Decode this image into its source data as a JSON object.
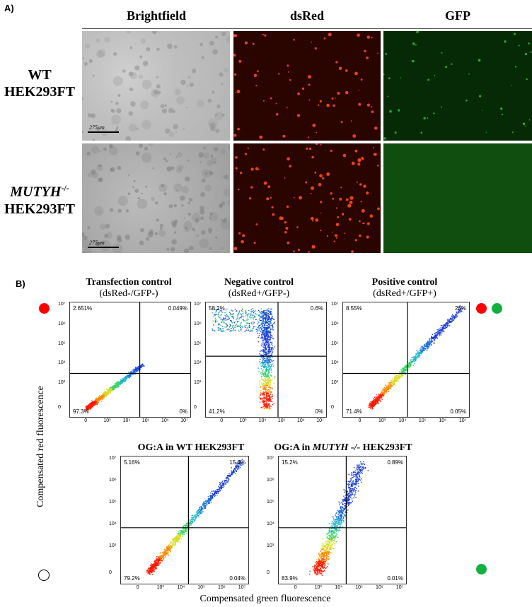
{
  "panel_a": {
    "label": "A)",
    "columns": [
      "Brightfield",
      "dsRed",
      "GFP"
    ],
    "rows": [
      {
        "line1": "WT",
        "line2": "HEK293FT"
      },
      {
        "line1": "MUTYH",
        "sup": "-/-",
        "line2": "HEK293FT"
      }
    ],
    "scale_bar": "275μm"
  },
  "panel_b": {
    "label": "B)",
    "plots": [
      {
        "title": "Transfection control",
        "subtitle": "(dsRed-/GFP-)",
        "q_ul": "2.651%",
        "q_ur": "0.049%",
        "q_ll": "97.3%",
        "q_lr": "0%"
      },
      {
        "title": "Negative control",
        "subtitle": "(dsRed+/GFP-)",
        "q_ul": "58.2%",
        "q_ur": "0.6%",
        "q_ll": "41.2%",
        "q_lr": "0%"
      },
      {
        "title": "Positive control",
        "subtitle": "(dsRed+/GFP+)",
        "q_ul": "8.55%",
        "q_ur": "20%",
        "q_ll": "71.4%",
        "q_lr": "0.05%"
      },
      {
        "title": "OG:A in WT HEK293FT",
        "subtitle": "",
        "q_ul": "5.16%",
        "q_ur": "15.6%",
        "q_ll": "79.2%",
        "q_lr": "0.04%"
      },
      {
        "title_prefix": "OG:A in ",
        "title_italic": "MUTYH -/-",
        "title_suffix": " HEK293FT",
        "subtitle": "",
        "q_ul": "15.2%",
        "q_ur": "0.89%",
        "q_ll": "83.9%",
        "q_lr": "0.01%"
      }
    ],
    "y_ticks": [
      "10⁷",
      "10⁶",
      "10⁵",
      "10⁴",
      "10³",
      "0"
    ],
    "x_ticks": [
      "0",
      "10³",
      "10⁴",
      "10⁵",
      "10⁶",
      "10⁷"
    ],
    "y_axis_label": "Compensated red fluorescence",
    "x_axis_label": "Compensated green fluorescence",
    "colors": {
      "red_dot": "#ff0000",
      "green_dot": "#11b040",
      "quadrant_line": "#000000"
    }
  }
}
